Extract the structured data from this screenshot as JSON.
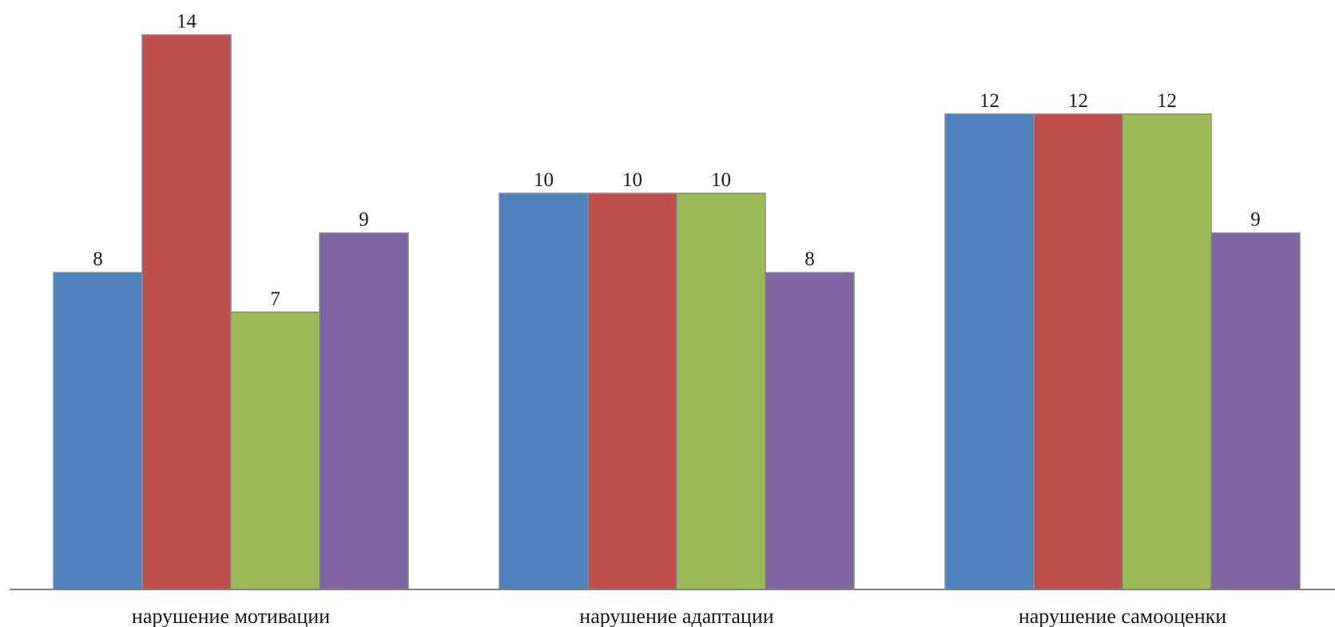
{
  "chart_data": {
    "type": "bar",
    "title": "",
    "xlabel": "",
    "ylabel": "",
    "categories": [
      "нарушение мотивации",
      "нарушение адаптации",
      "нарушение самооценки"
    ],
    "series": [
      {
        "color": "#4f81bd",
        "values": [
          8,
          10,
          12
        ]
      },
      {
        "color": "#c0504d",
        "values": [
          14,
          10,
          12
        ]
      },
      {
        "color": "#9bbb59",
        "values": [
          7,
          10,
          12
        ]
      },
      {
        "color": "#8064a2",
        "values": [
          9,
          8,
          9
        ]
      }
    ],
    "ylim": [
      0,
      14
    ],
    "grid": false,
    "legend": "none",
    "data_labels": true
  }
}
